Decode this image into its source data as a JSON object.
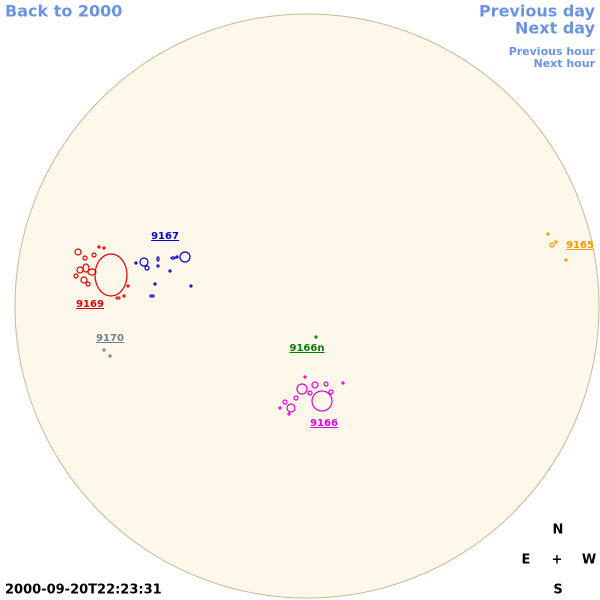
{
  "nav": {
    "back": "Back to 2000",
    "previous_day": "Previous day",
    "next_day": "Next day",
    "previous_hour": "Previous hour",
    "next_hour": "Next hour"
  },
  "regions": [
    {
      "label": "9167",
      "color": "#0000cc"
    },
    {
      "label": "9169",
      "color": "#dd0000"
    },
    {
      "label": "9170",
      "color": "#708090"
    },
    {
      "label": "9166n",
      "color": "#008000"
    },
    {
      "label": "9166",
      "color": "#dd00dd"
    },
    {
      "label": "9165",
      "color": "#ee9900"
    }
  ],
  "compass": {
    "north": "N",
    "east": "E",
    "center": "+",
    "west": "W",
    "south": "S"
  },
  "timestamp": "2000-09-20T22:23:31"
}
